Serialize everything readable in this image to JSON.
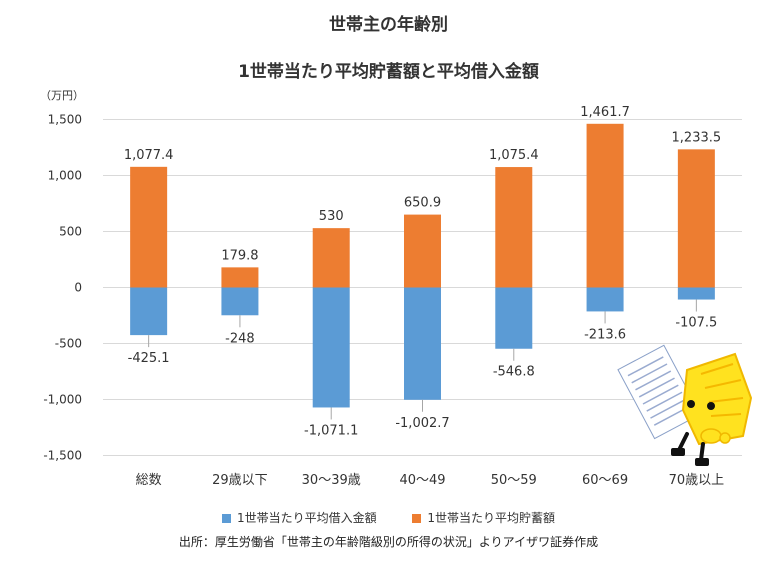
{
  "title_line1": "世帯主の年齢別",
  "title_line2": "1世帯当たり平均貯蓄額と平均借入金額",
  "unit_label": "（万円）",
  "source": "出所：厚生労働省「世帯主の年齢階級別の所得の状況」よりアイザワ証券作成",
  "chart_data": {
    "type": "bar",
    "stacked": true,
    "categories": [
      "総数",
      "29歳以下",
      "30～39歳",
      "40～49",
      "50～59",
      "60～69",
      "70歳以上"
    ],
    "series": [
      {
        "name": "1世帯当たり平均借入金額",
        "color": "#5b9bd5",
        "values": [
          -425.1,
          -248,
          -1071.1,
          -1002.7,
          -546.8,
          -213.6,
          -107.5
        ],
        "labels": [
          "-425.1",
          "-248",
          "-1,071.1",
          "-1,002.7",
          "-546.8",
          "-213.6",
          "-107.5"
        ]
      },
      {
        "name": "1世帯当たり平均貯蓄額",
        "color": "#ed7d31",
        "values": [
          1077.4,
          179.8,
          530,
          650.9,
          1075.4,
          1461.7,
          1233.5
        ],
        "labels": [
          "1,077.4",
          "179.8",
          "530",
          "650.9",
          "1,075.4",
          "1,461.7",
          "1,233.5"
        ]
      }
    ],
    "ylim": [
      -1500,
      1500
    ],
    "yticks": [
      1500,
      1000,
      500,
      0,
      -500,
      -1000,
      -1500
    ],
    "ytick_labels": [
      "1,500",
      "1,000",
      "500",
      "0",
      "-500",
      "-1,000",
      "-1,500"
    ],
    "grid": true,
    "legend_position": "bottom"
  }
}
